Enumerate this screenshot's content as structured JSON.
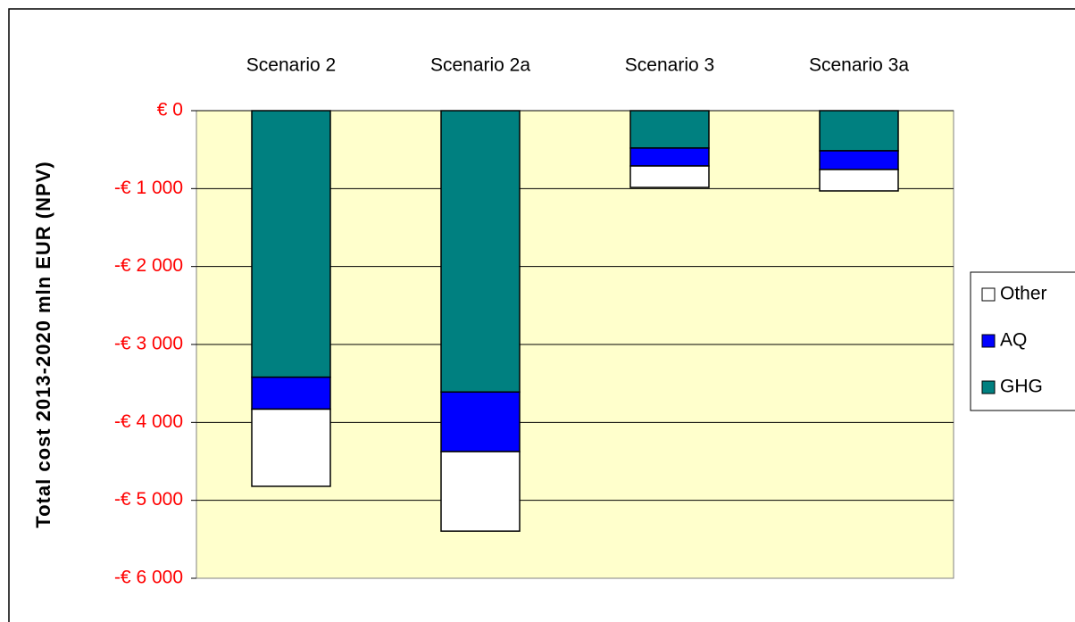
{
  "chart_data": {
    "type": "stacked_bar",
    "y_axis_label": "Total cost 2013-2020 mln EUR (NPV)",
    "categories": [
      "Scenario 2",
      "Scenario 2a",
      "Scenario 3",
      "Scenario 3a"
    ],
    "series": [
      {
        "name": "GHG",
        "color": "#008080",
        "values": [
          -3420,
          -3610,
          -480,
          -515
        ]
      },
      {
        "name": "AQ",
        "color": "#0000ff",
        "values": [
          -410,
          -765,
          -230,
          -240
        ]
      },
      {
        "name": "Other",
        "color": "#ffffff",
        "values": [
          -990,
          -1020,
          -275,
          -275
        ]
      }
    ],
    "ylim": [
      -6000,
      0
    ],
    "yticks": [
      {
        "value": 0,
        "label": "€ 0"
      },
      {
        "value": -1000,
        "label": "-€ 1 000"
      },
      {
        "value": -2000,
        "label": "-€ 2 000"
      },
      {
        "value": -3000,
        "label": "-€ 3 000"
      },
      {
        "value": -4000,
        "label": "-€ 4 000"
      },
      {
        "value": -5000,
        "label": "-€ 5 000"
      },
      {
        "value": -6000,
        "label": "-€ 6 000"
      }
    ],
    "grid": true,
    "legend": "right"
  }
}
